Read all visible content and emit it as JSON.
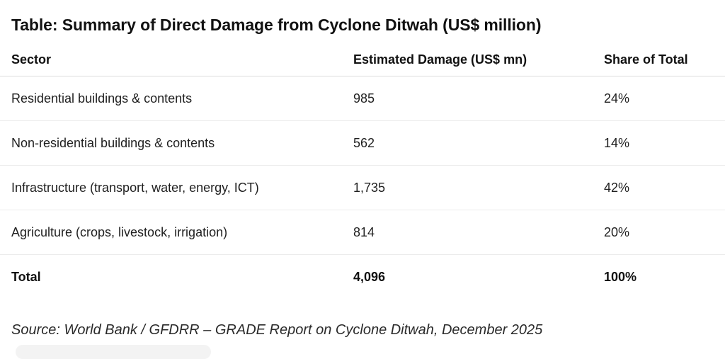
{
  "title": "Table: Summary of Direct Damage from Cyclone Ditwah (US$ million)",
  "table": {
    "headers": [
      "Sector",
      "Estimated Damage (US$ mn)",
      "Share of Total"
    ],
    "rows": [
      [
        "Residential buildings & contents",
        "985",
        "24%"
      ],
      [
        "Non-residential buildings & contents",
        "562",
        "14%"
      ],
      [
        "Infrastructure (transport, water, energy, ICT)",
        "1,735",
        "42%"
      ],
      [
        "Agriculture (crops, livestock, irrigation)",
        "814",
        "20%"
      ]
    ],
    "total": [
      "Total",
      "4,096",
      "100%"
    ]
  },
  "source": "Source: World Bank / GFDRR – GRADE Report on Cyclone Ditwah, December 2025"
}
